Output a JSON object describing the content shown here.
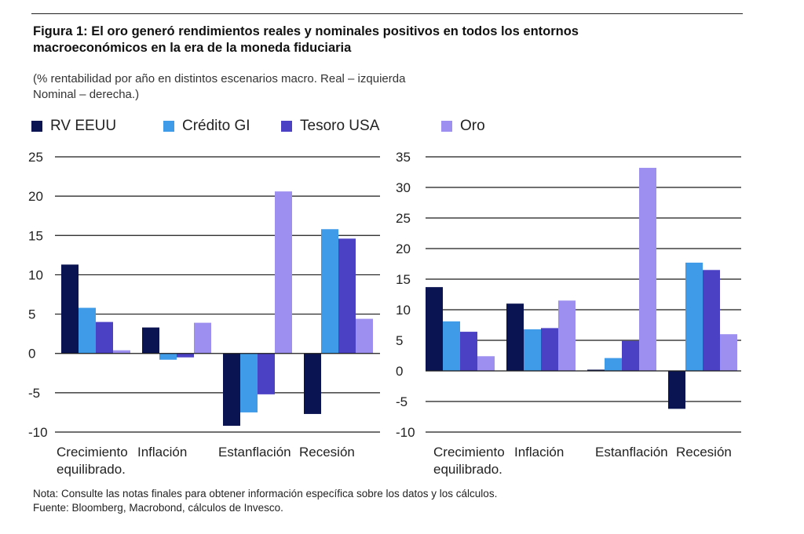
{
  "figure": {
    "title_line1": "Figura 1: El oro generó rendimientos reales y nominales positivos en todos los entornos",
    "title_line2": "macroeconómicos  en la era de la moneda fiduciaria",
    "subtitle_line1": "(% rentabilidad por año en distintos escenarios macro. Real – izquierda",
    "subtitle_line2": "Nominal – derecha.)",
    "note": "Nota: Consulte las notas finales para obtener información específica sobre los datos y los cálculos.",
    "source": "Fuente: Bloomberg, Macrobond, cálculos de Invesco."
  },
  "legend": [
    {
      "label": "RV EEUU",
      "color": "#0b1452"
    },
    {
      "label": "Crédito GI",
      "color": "#3f9be8"
    },
    {
      "label": "Tesoro USA",
      "color": "#4a41c4"
    },
    {
      "label": "Oro",
      "color": "#9c8ff0"
    }
  ],
  "chart_data": [
    {
      "type": "bar",
      "panel": "Real",
      "categories": [
        [
          "Crecimiento",
          "equilibrado."
        ],
        [
          "Inflación"
        ],
        [
          "Estanflación"
        ],
        [
          "Recesión"
        ]
      ],
      "ylim": [
        -10,
        25
      ],
      "yticks": [
        -10,
        -5,
        0,
        5,
        10,
        15,
        20,
        25
      ],
      "grid": true,
      "series": [
        {
          "name": "RV EEUU",
          "color": "#0b1452",
          "values": [
            11.3,
            3.3,
            -9.2,
            -7.7
          ]
        },
        {
          "name": "Crédito GI",
          "color": "#3f9be8",
          "values": [
            5.8,
            -0.8,
            -7.5,
            15.8
          ]
        },
        {
          "name": "Tesoro USA",
          "color": "#4a41c4",
          "values": [
            4.0,
            -0.5,
            -5.2,
            14.6
          ]
        },
        {
          "name": "Oro",
          "color": "#9c8ff0",
          "values": [
            0.4,
            3.9,
            20.6,
            4.4
          ]
        }
      ]
    },
    {
      "type": "bar",
      "panel": "Nominal",
      "categories": [
        [
          "Crecimiento",
          "equilibrado."
        ],
        [
          "Inflación"
        ],
        [
          "Estanflación"
        ],
        [
          "Recesión"
        ]
      ],
      "ylim": [
        -10,
        35
      ],
      "yticks": [
        -10,
        -5,
        0,
        5,
        10,
        15,
        20,
        25,
        30,
        35
      ],
      "grid": true,
      "series": [
        {
          "name": "RV EEUU",
          "color": "#0b1452",
          "values": [
            13.7,
            11.0,
            0.2,
            -6.2
          ]
        },
        {
          "name": "Crédito GI",
          "color": "#3f9be8",
          "values": [
            8.1,
            6.8,
            2.1,
            17.7
          ]
        },
        {
          "name": "Tesoro USA",
          "color": "#4a41c4",
          "values": [
            6.4,
            7.0,
            4.9,
            16.5
          ]
        },
        {
          "name": "Oro",
          "color": "#9c8ff0",
          "values": [
            2.4,
            11.5,
            33.2,
            6.0
          ]
        }
      ]
    }
  ]
}
